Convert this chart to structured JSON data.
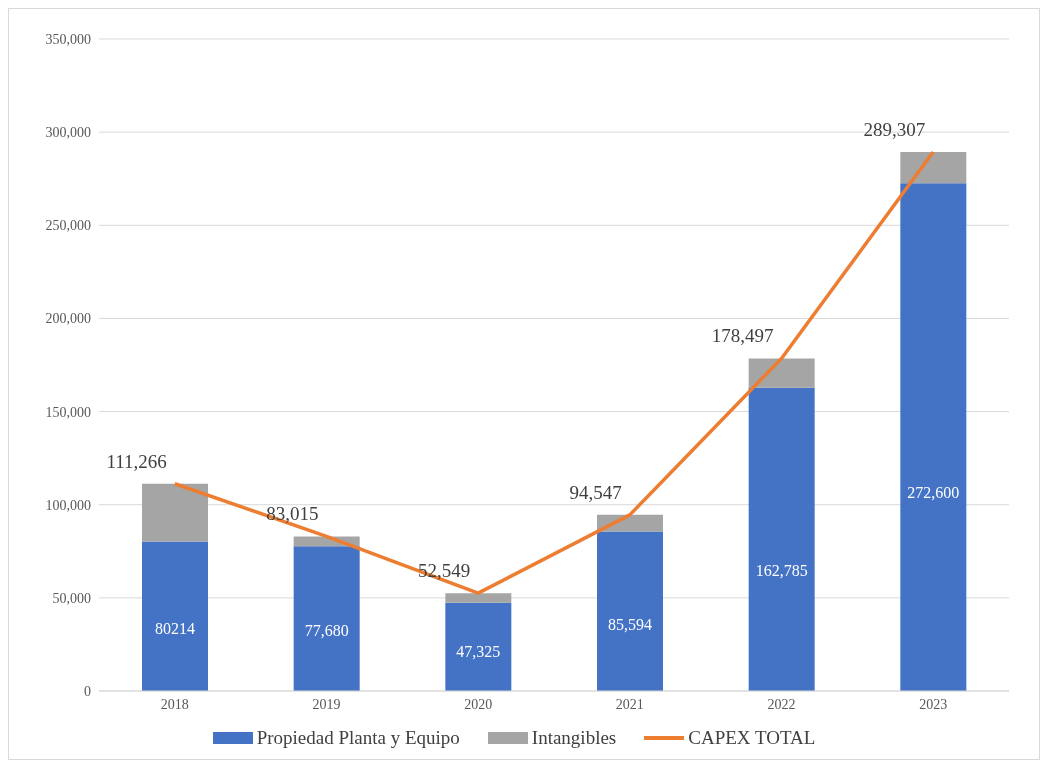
{
  "chart_data": {
    "type": "bar",
    "stacked": true,
    "categories": [
      "2018",
      "2019",
      "2020",
      "2021",
      "2022",
      "2023"
    ],
    "series": [
      {
        "name": "Propiedad Planta y Equipo",
        "color": "#4472c4",
        "values": [
          80214,
          77680,
          47325,
          85594,
          162785,
          272600
        ],
        "value_labels": [
          "80214",
          "77,680",
          "47,325",
          "85,594",
          "162,785",
          "272,600"
        ]
      },
      {
        "name": "Intangibles",
        "color": "#a5a5a5",
        "values": [
          31100,
          5300,
          5200,
          9000,
          15700,
          16700
        ]
      },
      {
        "name": "CAPEX TOTAL",
        "type": "line",
        "color": "#ed7d31",
        "values": [
          111266,
          83015,
          52549,
          94547,
          178497,
          289307
        ],
        "value_labels": [
          "111,266",
          "83,015",
          "52,549",
          "94,547",
          "178,497",
          "289,307"
        ]
      }
    ],
    "ylim": [
      0,
      350000
    ],
    "yticks": [
      {
        "value": 0,
        "label": "0"
      },
      {
        "value": 50000,
        "label": "50,000"
      },
      {
        "value": 100000,
        "label": "100,000"
      },
      {
        "value": 150000,
        "label": "150,000"
      },
      {
        "value": 200000,
        "label": "200,000"
      },
      {
        "value": 250000,
        "label": "250,000"
      },
      {
        "value": 300000,
        "label": "300,000"
      },
      {
        "value": 350000,
        "label": "350,000"
      }
    ],
    "grid": "y",
    "legend": "bottom",
    "marker": "none"
  }
}
